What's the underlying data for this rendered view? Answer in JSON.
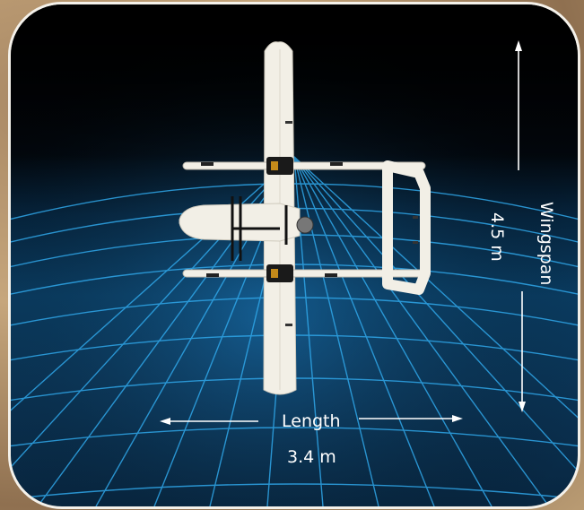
{
  "dimensions": {
    "wingspan_title": "Wingspan",
    "wingspan_value": "4.5  m",
    "length_title": "Length",
    "length_value": "3.4 m"
  },
  "colors": {
    "grid_line": "#2fa6e8",
    "background_top": "#000000",
    "background_bottom": "#0a3d63",
    "aircraft_body": "#f2efe6",
    "arrow": "#ffffff"
  },
  "illustration": "vtol-fixed-wing-drone-top-view"
}
